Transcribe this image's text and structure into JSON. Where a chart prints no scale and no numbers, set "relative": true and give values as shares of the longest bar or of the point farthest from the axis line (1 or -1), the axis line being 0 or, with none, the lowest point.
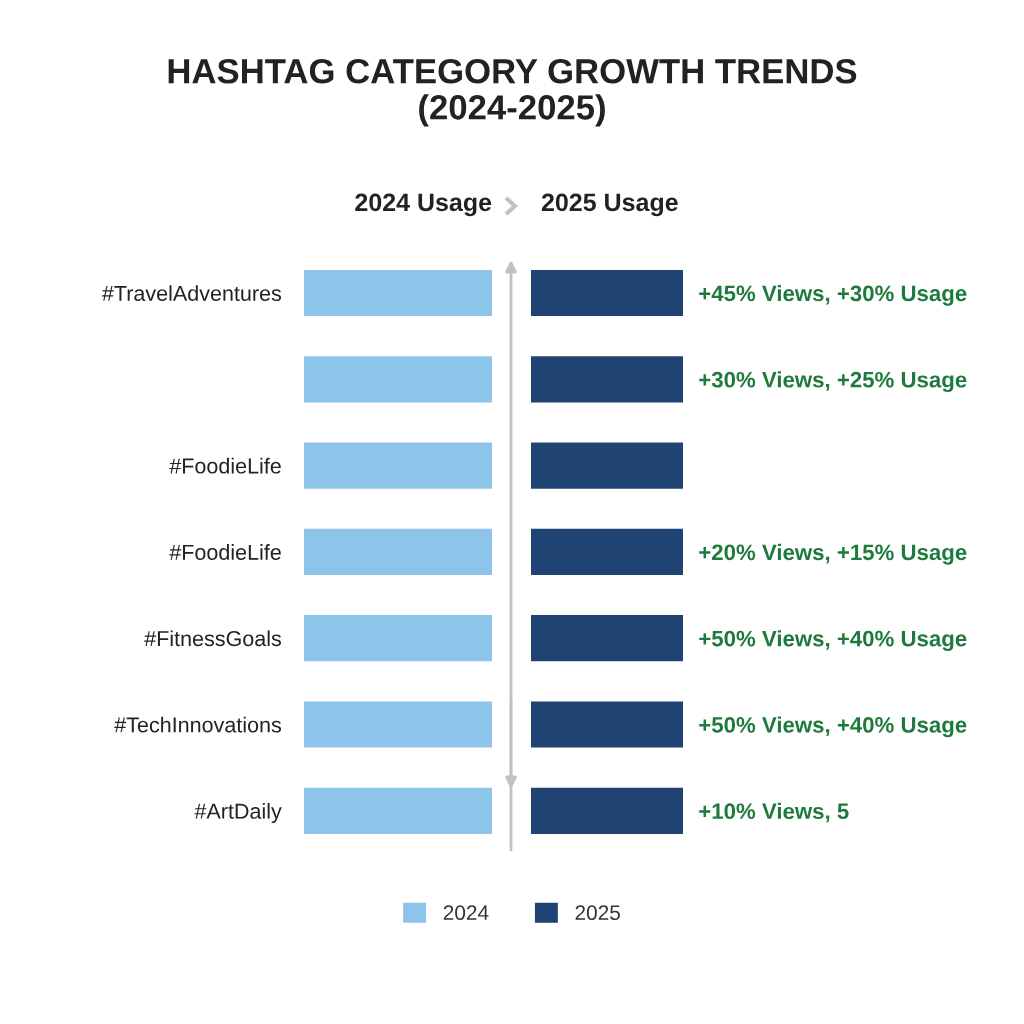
{
  "chart_data": [
    {
      "type": "bar",
      "orientation": "horizontal",
      "relative": true,
      "title": "HASHTAG CATEGORY GROWTH TRENDS\n(2024-2025)",
      "xlabel": "2024 Usage",
      "categories": [
        "#TravelAdventures",
        null,
        "#FoodieLife",
        "#FoodieLife",
        "#FitnessGoals",
        "#TechInnovations",
        "#ArtDaily"
      ],
      "series": [
        {
          "name": "2024",
          "color": "#8dc5ea",
          "values": [
            1,
            1,
            1,
            1,
            1,
            1,
            1
          ]
        }
      ],
      "legend": "bottom"
    },
    {
      "type": "bar",
      "orientation": "horizontal",
      "relative": true,
      "xlabel": "2025 Usage",
      "categories": [
        "+45% Views, +30% Usage",
        "+30% Views, +25% Usage",
        null,
        "+20% Views, +15% Usage",
        "+50% Views, +40% Usage",
        "+50% Views, +40% Usage",
        "+10% Views, 5"
      ],
      "series": [
        {
          "name": "2025",
          "color": "#1f4474",
          "values": [
            1,
            1,
            1,
            1,
            1,
            1,
            1
          ]
        }
      ],
      "legend": "bottom"
    }
  ]
}
